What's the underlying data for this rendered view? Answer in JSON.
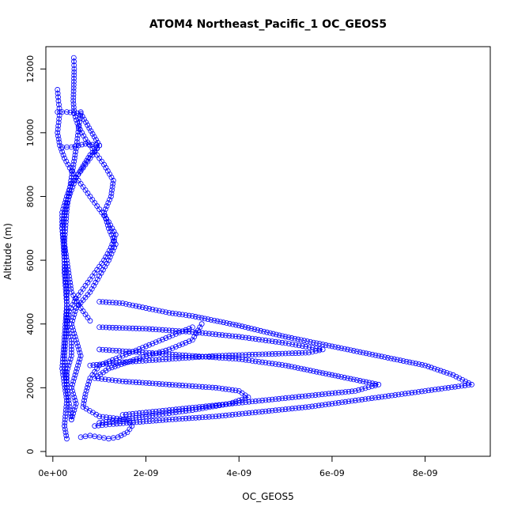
{
  "chart_data": {
    "type": "scatter",
    "title": "ATOM4 Northeast_Pacific_1 OC_GEOS5",
    "xlabel": "OC_GEOS5",
    "ylabel": "Altitude (m)",
    "xlim": [
      -1.5e-10,
      9.4e-09
    ],
    "ylim": [
      -150,
      12700
    ],
    "x_ticks": [
      0,
      2e-09,
      4e-09,
      6e-09,
      8e-09
    ],
    "x_tick_labels": [
      "0e+00",
      "2e-09",
      "4e-09",
      "6e-09",
      "8e-09"
    ],
    "y_ticks": [
      0,
      2000,
      4000,
      6000,
      8000,
      10000,
      12000
    ],
    "y_tick_labels": [
      "0",
      "2000",
      "4000",
      "6000",
      "8000",
      "10000",
      "12000"
    ],
    "color": "#0000ff",
    "marker": "open-circle",
    "line_style": "solid with open-circle markers",
    "grid": false,
    "legend": "none",
    "series": [
      {
        "name": "",
        "x": [
          4.5e-10,
          4.6e-10,
          4.5e-10,
          4.4e-10,
          4.6e-10,
          5.5e-10,
          7e-10,
          9e-10,
          1.1e-09,
          1.3e-09,
          1.25e-09,
          1.1e-09,
          1.2e-09,
          1.35e-09,
          1.2e-09,
          1e-09,
          8e-10,
          5e-10,
          4e-10,
          5e-10,
          6e-10,
          5e-10,
          4e-10,
          5e-10,
          4e-10
        ],
        "y": [
          12350,
          12000,
          11500,
          11000,
          10600,
          10200,
          9800,
          9400,
          9000,
          8500,
          8000,
          7500,
          7000,
          6500,
          6000,
          5500,
          5000,
          4500,
          4000,
          3500,
          3000,
          2500,
          2000,
          1500,
          1000
        ]
      },
      {
        "name": "",
        "x": [
          1e-10,
          1.2e-10,
          1.5e-10,
          1e-10,
          1.5e-10,
          2.5e-10,
          4e-10,
          6e-10,
          8e-10,
          1e-09,
          1.2e-09,
          1.35e-09,
          1.25e-09,
          1.1e-09,
          9e-10,
          7e-10,
          5e-10,
          3.5e-10,
          3e-10,
          4e-10,
          4e-10,
          3e-10,
          3e-10
        ],
        "y": [
          11350,
          11000,
          10650,
          10000,
          9600,
          9200,
          8800,
          8400,
          8000,
          7600,
          7200,
          6800,
          6400,
          6000,
          5600,
          5200,
          4800,
          4400,
          4000,
          3500,
          3000,
          2500,
          2000
        ]
      },
      {
        "name": "",
        "x": [
          1e-10,
          3e-10,
          6e-10,
          1e-09,
          8e-10,
          6e-10,
          4e-10,
          3e-10,
          2e-10,
          2e-10,
          3e-10,
          4e-10,
          6e-10,
          8e-10
        ],
        "y": [
          10650,
          10650,
          10600,
          9600,
          9200,
          8800,
          8400,
          8000,
          7500,
          7000,
          6000,
          5000,
          4500,
          4100
        ]
      },
      {
        "name": "",
        "x": [
          2e-10,
          4e-10,
          7e-10,
          1e-09,
          8e-10,
          5e-10,
          3e-10,
          2e-10,
          2.5e-10,
          3e-10,
          3e-10,
          2.5e-10,
          3e-10,
          4e-10
        ],
        "y": [
          9550,
          9550,
          9650,
          9600,
          9300,
          8600,
          7800,
          7000,
          6000,
          5000,
          4000,
          3000,
          2000,
          1000
        ]
      },
      {
        "name": "",
        "x": [
          6e-10,
          5e-10,
          4e-10,
          3e-10,
          2.5e-10,
          2.5e-10,
          3e-10,
          2.5e-10,
          2e-10,
          3e-10,
          2.5e-10,
          3e-10
        ],
        "y": [
          10650,
          9500,
          8600,
          7600,
          6600,
          5600,
          4600,
          3600,
          2600,
          1600,
          800,
          400
        ]
      },
      {
        "name": "",
        "x": [
          1e-09,
          1.5e-09,
          2e-09,
          2.5e-09,
          3e-09,
          4e-09,
          5e-09,
          6e-09,
          7e-09,
          8e-09,
          8.6e-09,
          9e-09,
          8.5e-09,
          7.5e-09,
          6.5e-09,
          5.5e-09,
          4.5e-09,
          3.5e-09,
          2.5e-09,
          1.8e-09,
          1.3e-09,
          9e-10
        ],
        "y": [
          4700,
          4650,
          4500,
          4350,
          4250,
          3950,
          3600,
          3300,
          3000,
          2700,
          2400,
          2100,
          2000,
          1800,
          1600,
          1400,
          1250,
          1100,
          1000,
          920,
          860,
          800
        ]
      },
      {
        "name": "",
        "x": [
          1e-09,
          2e-09,
          3e-09,
          4e-09,
          5e-09,
          5.8e-09,
          5.5e-09,
          4.5e-09,
          3.5e-09,
          2.5e-09,
          1.5e-09,
          8e-10
        ],
        "y": [
          3900,
          3850,
          3750,
          3600,
          3400,
          3200,
          3100,
          3050,
          3000,
          2900,
          2800,
          2700
        ]
      },
      {
        "name": "",
        "x": [
          1e-09,
          2e-09,
          3e-09,
          4e-09,
          5e-09,
          6e-09,
          7e-09,
          6.5e-09,
          5.5e-09,
          4.5e-09,
          3.5e-09,
          2.5e-09,
          1.5e-09
        ],
        "y": [
          3200,
          3100,
          3000,
          2900,
          2700,
          2400,
          2100,
          1900,
          1750,
          1600,
          1450,
          1300,
          1150
        ]
      },
      {
        "name": "",
        "x": [
          3e-09,
          2.5e-09,
          2e-09,
          1.5e-09,
          1e-09,
          8e-10,
          7e-10,
          6.5e-10,
          1e-09,
          1.6e-09,
          1.7e-09,
          1.6e-09,
          1.4e-09,
          1.2e-09,
          1e-09,
          8e-10,
          6e-10
        ],
        "y": [
          3900,
          3600,
          3300,
          3000,
          2700,
          2300,
          1800,
          1400,
          1100,
          1000,
          800,
          600,
          450,
          400,
          450,
          500,
          450
        ]
      },
      {
        "name": "",
        "x": [
          3.2e-09,
          3e-09,
          2.5e-09,
          1.8e-09,
          1.2e-09,
          9e-10,
          1.5e-09,
          2.5e-09,
          3.5e-09,
          4e-09,
          4.2e-09,
          3.8e-09,
          3e-09,
          2e-09,
          1e-09
        ],
        "y": [
          4000,
          3500,
          3200,
          2900,
          2600,
          2300,
          2200,
          2100,
          2000,
          1900,
          1700,
          1500,
          1300,
          1100,
          900
        ]
      }
    ]
  }
}
